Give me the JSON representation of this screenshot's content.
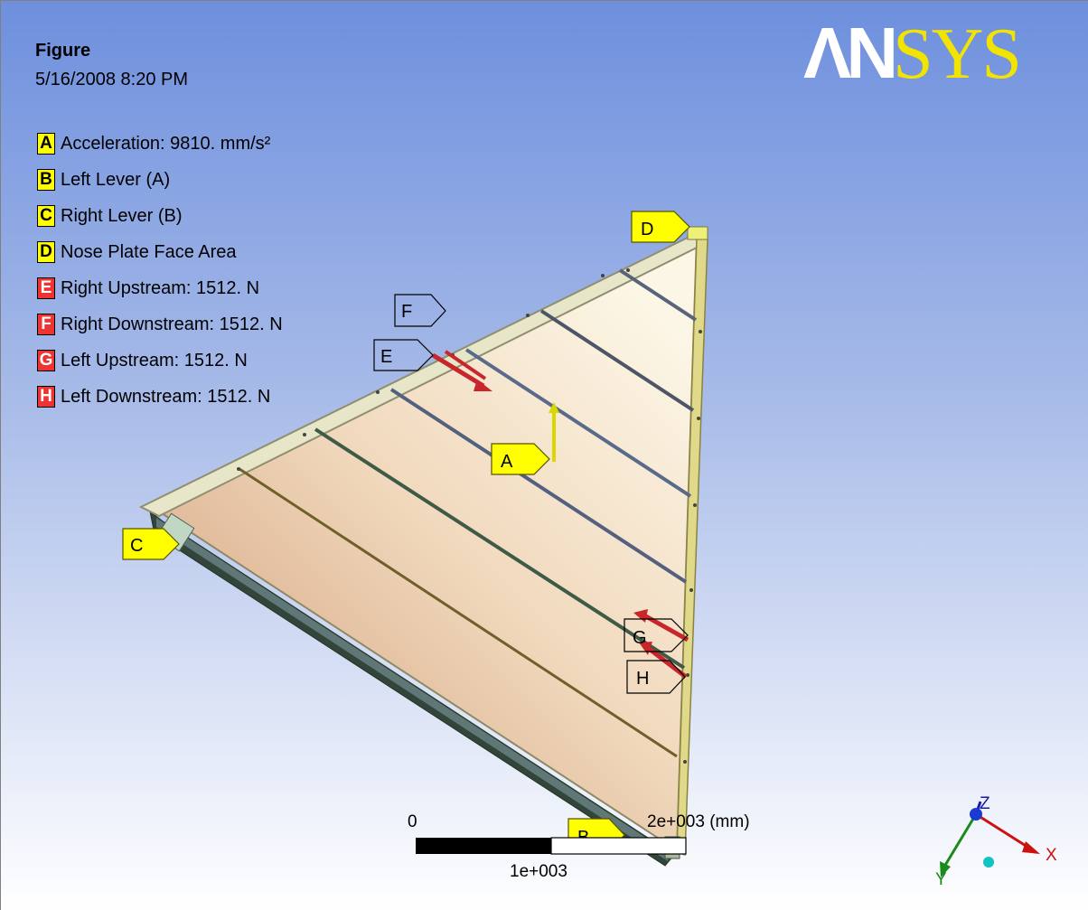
{
  "header": {
    "title": "Figure",
    "timestamp": "5/16/2008 8:20 PM"
  },
  "logo": {
    "part1": "ΛN",
    "part2": "SYS"
  },
  "legend": [
    {
      "key": "A",
      "text": "Acceleration: 9810. mm/s²",
      "color": "#ffff00"
    },
    {
      "key": "B",
      "text": "Left Lever (A)",
      "color": "#ffff00"
    },
    {
      "key": "C",
      "text": "Right Lever (B)",
      "color": "#ffff00"
    },
    {
      "key": "D",
      "text": "Nose Plate Face Area",
      "color": "#ffff00"
    },
    {
      "key": "E",
      "text": "Right Upstream: 1512. N",
      "color": "#ee3333"
    },
    {
      "key": "F",
      "text": "Right Downstream: 1512. N",
      "color": "#ee3333"
    },
    {
      "key": "G",
      "text": "Left Upstream: 1512. N",
      "color": "#ee3333"
    },
    {
      "key": "H",
      "text": "Left Downstream: 1512. N",
      "color": "#ee3333"
    }
  ],
  "model_tags": {
    "A": "A",
    "B": "B",
    "C": "C",
    "D": "D",
    "E": "E",
    "F": "F",
    "G": "G",
    "H": "H"
  },
  "scale_bar": {
    "start": "0",
    "mid": "1e+003",
    "end": "2e+003 (mm)"
  },
  "triad": {
    "x": "X",
    "y": "Y",
    "z": "Z"
  },
  "colors": {
    "bg_top": "#6f8fdd",
    "bg_bottom": "#ffffff",
    "label_yellow": "#ffff00",
    "force_red": "#cc2222"
  }
}
